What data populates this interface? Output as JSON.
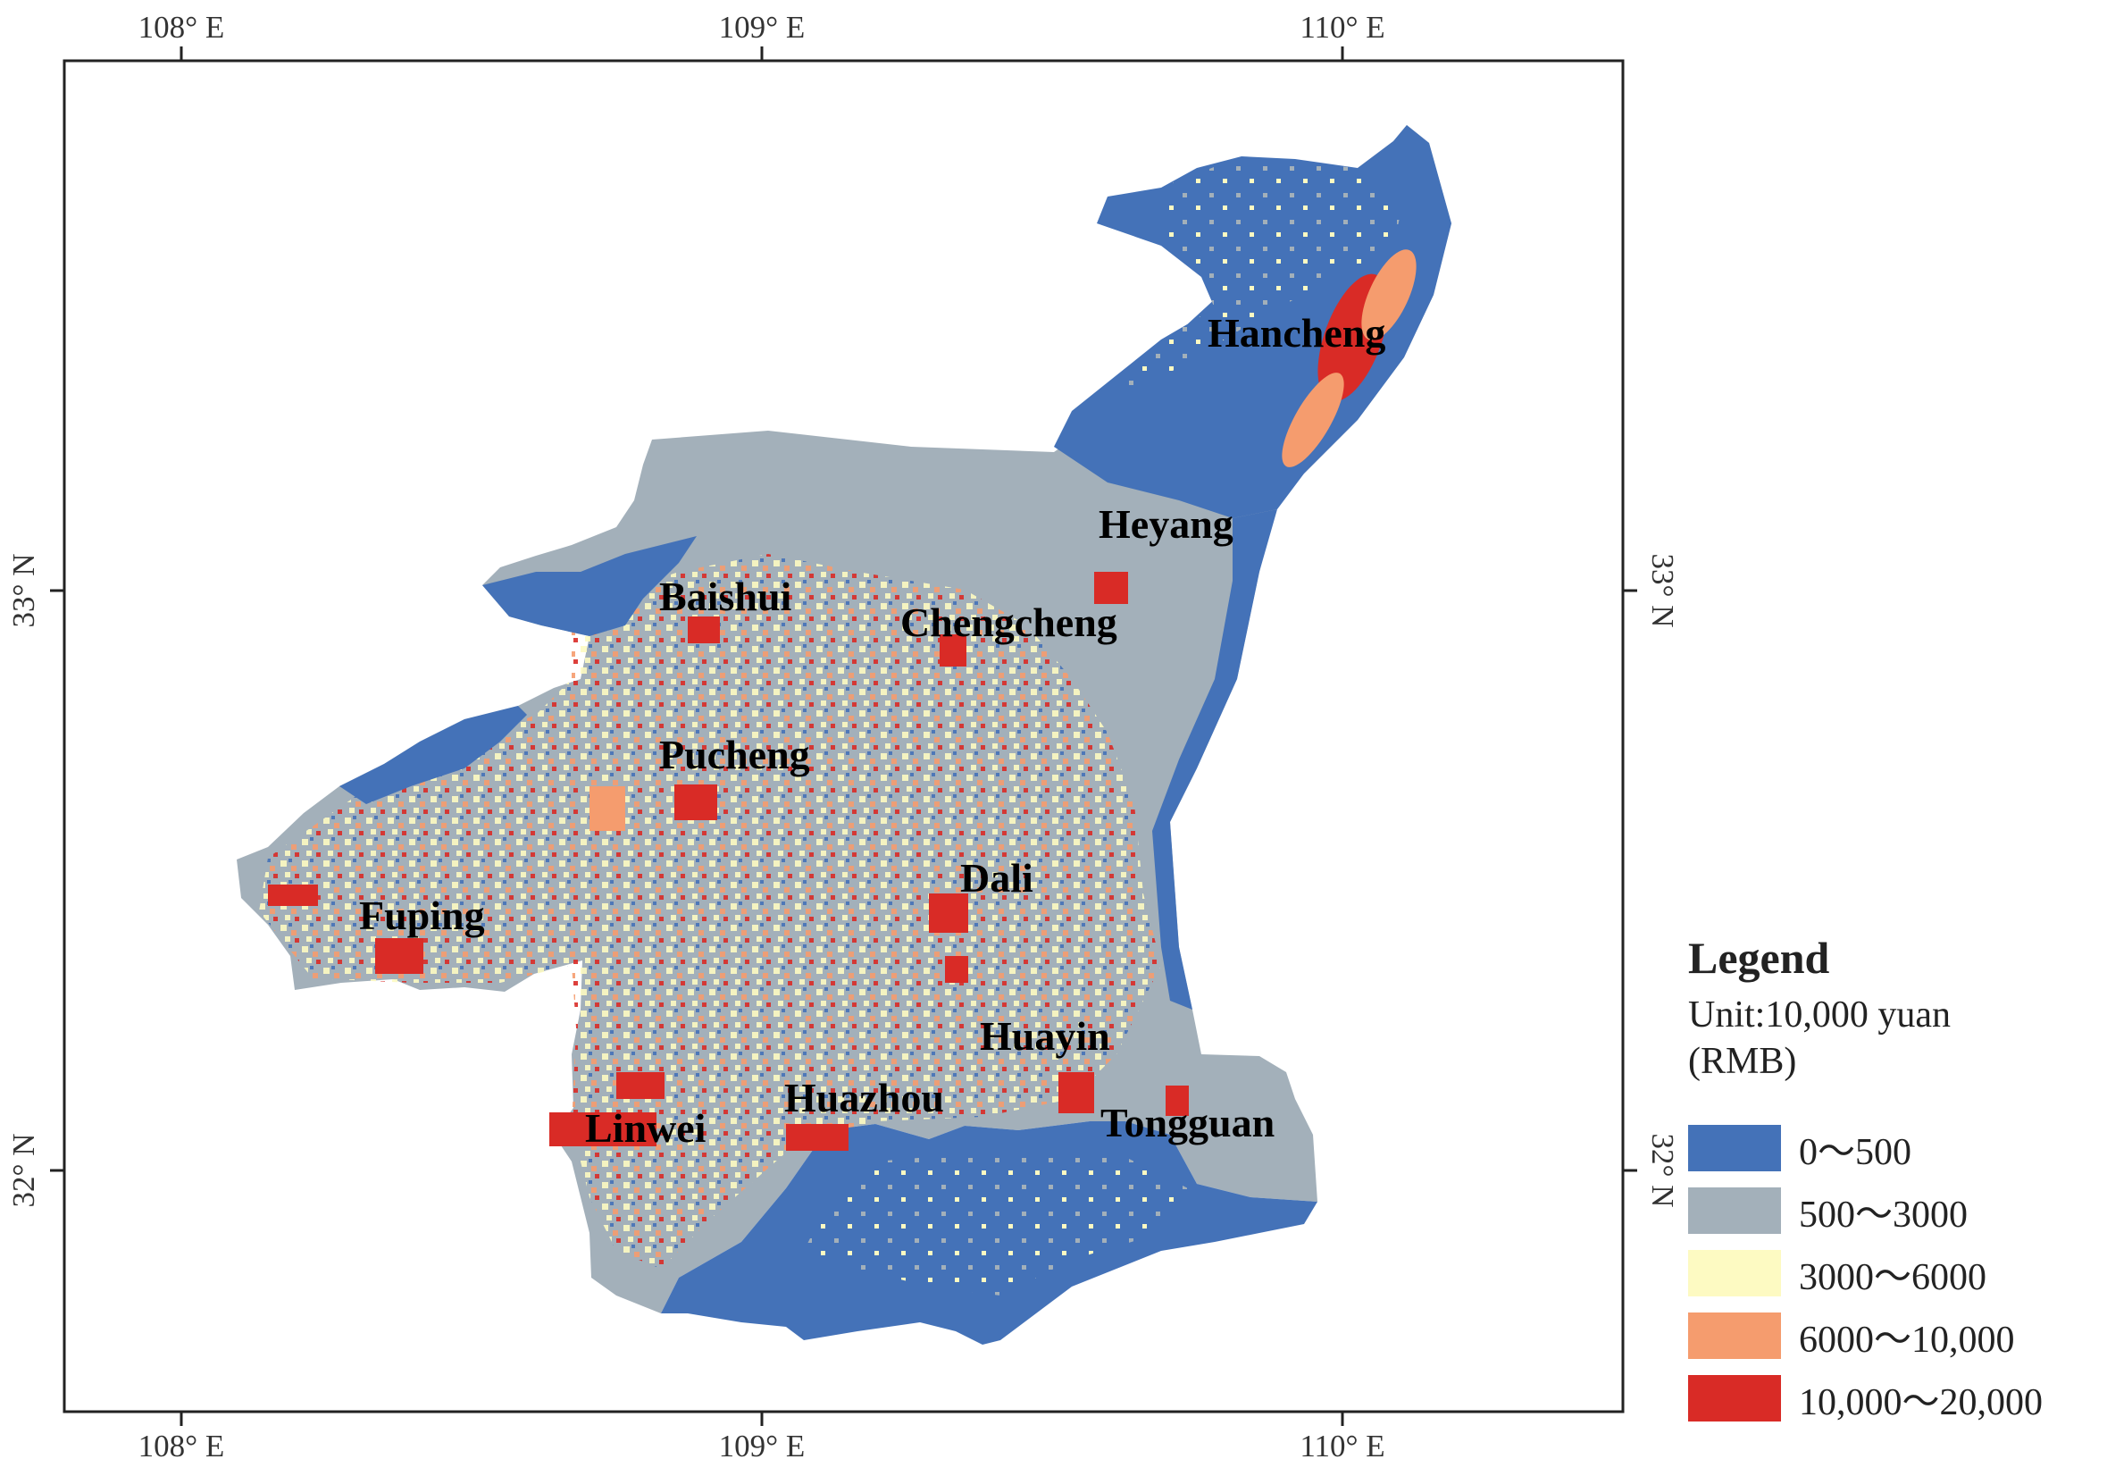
{
  "map": {
    "x_ticks": [
      "108° E",
      "109° E",
      "110° E"
    ],
    "y_ticks": [
      "33° N",
      "32° N"
    ],
    "cities": [
      "Hancheng",
      "Heyang",
      "Baishui",
      "Chengcheng",
      "Pucheng",
      "Dali",
      "Fuping",
      "Huayin",
      "Huazhou",
      "Linwei",
      "Tongguan"
    ]
  },
  "legend": {
    "title": "Legend",
    "unit": "Unit:10,000 yuan (RMB)",
    "items": [
      {
        "label": "0～500",
        "color": "#4472b8"
      },
      {
        "label": "500～3000",
        "color": "#a3b0ba"
      },
      {
        "label": "3000～6000",
        "color": "#fdfac2"
      },
      {
        "label": "6000～10,000",
        "color": "#f59c6e"
      },
      {
        "label": "10,000～20,000",
        "color": "#d92b26"
      }
    ]
  }
}
